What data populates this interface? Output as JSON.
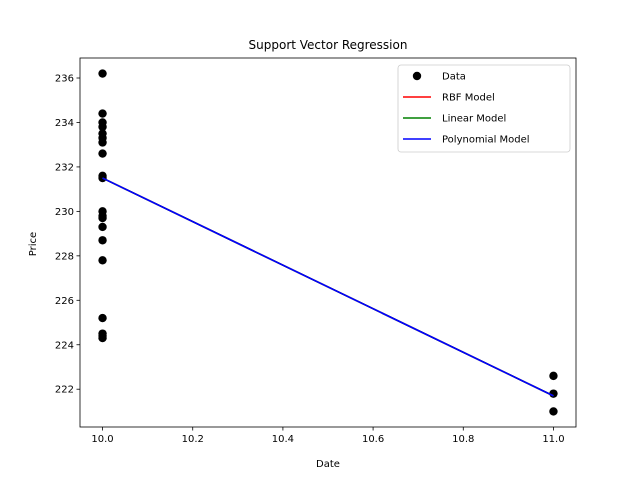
{
  "chart_data": {
    "type": "scatter",
    "title": "Support Vector Regression",
    "xlabel": "Date",
    "ylabel": "Price",
    "xlim": [
      9.95,
      11.05
    ],
    "ylim": [
      220.3,
      236.9
    ],
    "xticks": [
      "10.0",
      "10.2",
      "10.4",
      "10.6",
      "10.8",
      "11.0"
    ],
    "yticks": [
      "222",
      "224",
      "226",
      "228",
      "230",
      "232",
      "234",
      "236"
    ],
    "grid": false,
    "legend_position": "top-right",
    "points": {
      "name": "Data",
      "color": "#000000",
      "x": [
        10,
        10,
        10,
        10,
        10,
        10,
        10,
        10,
        10,
        10,
        10,
        10,
        10,
        10,
        10,
        10,
        10,
        10,
        10,
        10,
        11,
        11,
        11
      ],
      "y": [
        236.2,
        234.4,
        234.0,
        233.8,
        233.5,
        233.3,
        233.1,
        232.6,
        231.6,
        230.0,
        229.7,
        229.3,
        228.7,
        227.8,
        225.2,
        224.5,
        224.4,
        224.3,
        231.5,
        229.8,
        222.6,
        221.8,
        221.0
      ]
    },
    "series": [
      {
        "name": "RBF Model",
        "color": "#ff0000",
        "x": [
          10,
          11
        ],
        "y": [
          231.5,
          221.7
        ]
      },
      {
        "name": "Linear Model",
        "color": "#008000",
        "x": [
          10,
          11
        ],
        "y": [
          231.5,
          221.7
        ]
      },
      {
        "name": "Polynomial Model",
        "color": "#0000ff",
        "x": [
          10,
          11
        ],
        "y": [
          231.5,
          221.7
        ]
      }
    ]
  }
}
